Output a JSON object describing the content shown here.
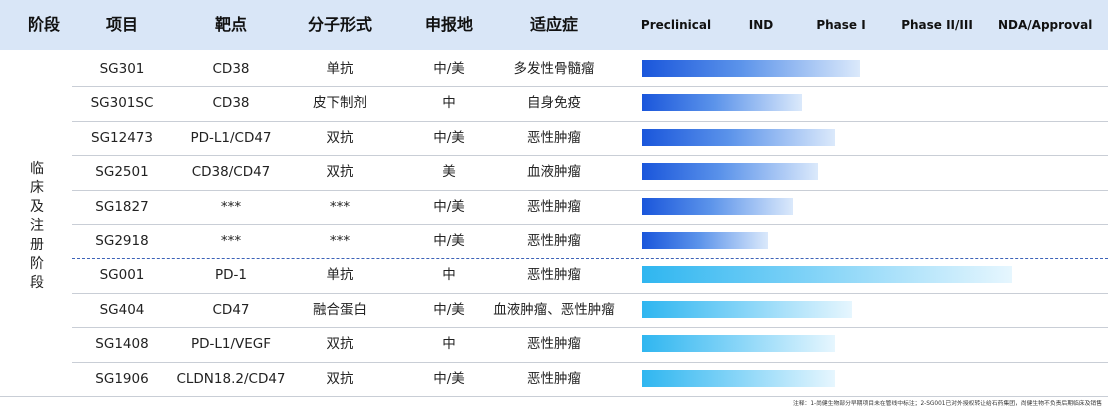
{
  "header": {
    "stage": "阶段",
    "project": "项目",
    "target": "靶点",
    "modality": "分子形式",
    "region": "申报地",
    "indication": "适应症"
  },
  "phases": [
    "Preclinical",
    "IND",
    "Phase I",
    "Phase II/III",
    "NDA/Approval"
  ],
  "stage_label": "临床及注册阶段",
  "rows": [
    {
      "project": "SG301",
      "target": "CD38",
      "modality": "单抗",
      "region": "中/美",
      "indication": "多发性骨髓瘤"
    },
    {
      "project": "SG301SC",
      "target": "CD38",
      "modality": "皮下制剂",
      "region": "中",
      "indication": "自身免疫"
    },
    {
      "project": "SG12473",
      "target": "PD-L1/CD47",
      "modality": "双抗",
      "region": "中/美",
      "indication": "恶性肿瘤"
    },
    {
      "project": "SG2501",
      "target": "CD38/CD47",
      "modality": "双抗",
      "region": "美",
      "indication": "血液肿瘤"
    },
    {
      "project": "SG1827",
      "target": "***",
      "modality": "***",
      "region": "中/美",
      "indication": "恶性肿瘤"
    },
    {
      "project": "SG2918",
      "target": "***",
      "modality": "***",
      "region": "中/美",
      "indication": "恶性肿瘤"
    },
    {
      "project": "SG001",
      "target": "PD-1",
      "modality": "单抗",
      "region": "中",
      "indication": "恶性肿瘤"
    },
    {
      "project": "SG404",
      "target": "CD47",
      "modality": "融合蛋白",
      "region": "中/美",
      "indication": "血液肿瘤、恶性肿瘤"
    },
    {
      "project": "SG1408",
      "target": "PD-L1/VEGF",
      "modality": "双抗",
      "region": "中",
      "indication": "恶性肿瘤"
    },
    {
      "project": "SG1906",
      "target": "CLDN18.2/CD47",
      "modality": "双抗",
      "region": "中/美",
      "indication": "恶性肿瘤"
    }
  ],
  "chart_data": {
    "type": "bar",
    "orientation": "horizontal",
    "categories": [
      "SG301",
      "SG301SC",
      "SG12473",
      "SG2501",
      "SG1827",
      "SG2918",
      "SG001",
      "SG404",
      "SG1408",
      "SG1906"
    ],
    "x_categories": [
      "Preclinical",
      "IND",
      "Phase I",
      "Phase II/III",
      "NDA/Approval"
    ],
    "values": [
      2.6,
      1.9,
      2.3,
      2.1,
      1.8,
      1.5,
      4.4,
      2.5,
      2.3,
      2.3
    ],
    "xlim": [
      0,
      5
    ],
    "grid": false,
    "group_colors": {
      "first_six": "#1a56db",
      "last_four": "#2fb6f0"
    }
  },
  "footnote": "注释：1-尚健生物部分早期项目未在管线中标注；2-SG001已对外授权转让给石药集团，尚健生物不负责后期临床及销售"
}
